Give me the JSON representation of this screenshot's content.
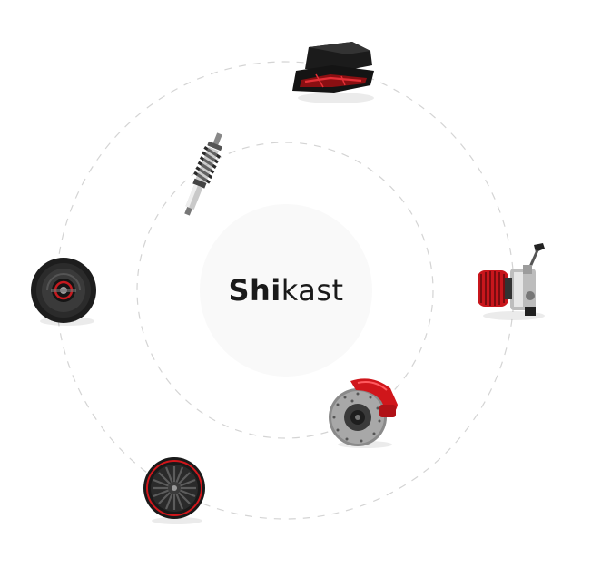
{
  "logo": {
    "bold_text": "Shi",
    "light_text": "kast"
  },
  "parts": [
    {
      "name": "tail-light-icon"
    },
    {
      "name": "shock-absorber-icon"
    },
    {
      "name": "speaker-icon"
    },
    {
      "name": "carburetor-icon"
    },
    {
      "name": "brake-caliper-icon"
    },
    {
      "name": "wheel-icon"
    }
  ],
  "colors": {
    "accent": "#d0161b",
    "orbit": "#d4d4d4",
    "center_disc": "#f9f9f9",
    "text": "#1a1a1a"
  }
}
